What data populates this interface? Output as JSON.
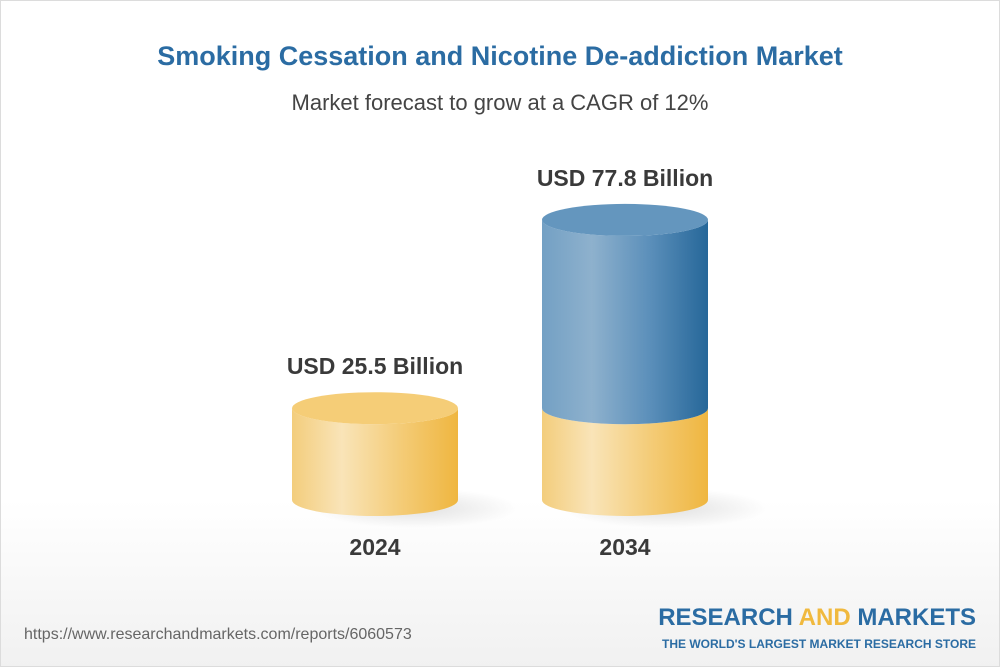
{
  "title": "Smoking Cessation and Nicotine De-addiction Market",
  "subtitle": "Market forecast to grow at a CAGR of 12%",
  "chart_data": {
    "type": "bar",
    "style": "3d-cylinder",
    "categories": [
      "2024",
      "2034"
    ],
    "values": [
      25.5,
      77.8
    ],
    "data_labels": [
      "USD 25.5 Billion",
      "USD 77.8 Billion"
    ],
    "colors": {
      "base": "#f2c060",
      "growth": "#2b6ca3"
    }
  },
  "footer": {
    "url": "https://www.researchandmarkets.com/reports/6060573",
    "logo_part1": "RESEARCH ",
    "logo_and": "AND",
    "logo_part2": " MARKETS",
    "tagline": "THE WORLD'S LARGEST MARKET RESEARCH STORE"
  }
}
